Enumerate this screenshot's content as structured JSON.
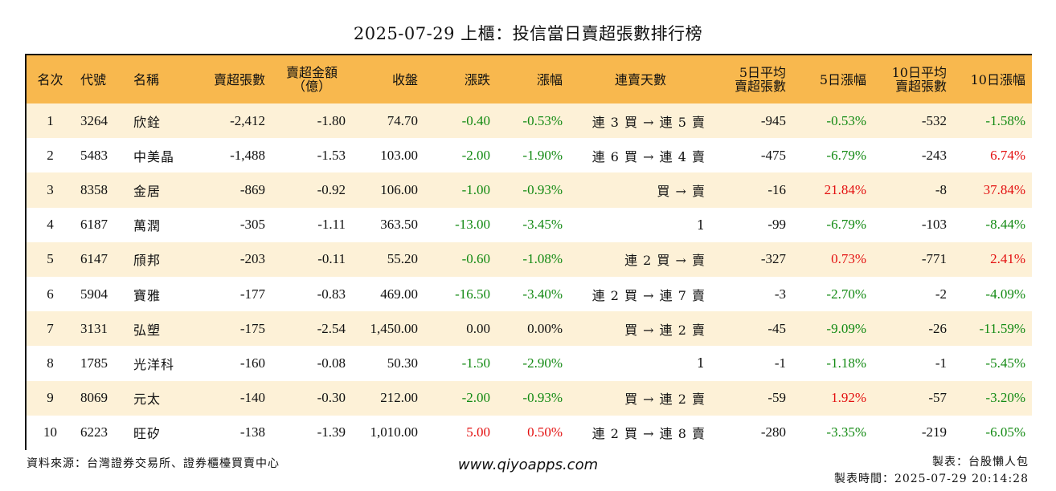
{
  "title": "2025-07-29 上櫃：投信當日賣超張數排行榜",
  "headers": {
    "rank": "名次",
    "code": "代號",
    "name": "名稱",
    "net_sell": "賣超張數",
    "amount_line1": "賣超金額",
    "amount_line2": "（億）",
    "close": "收盤",
    "change": "漲跌",
    "change_pct": "漲幅",
    "streak": "連賣天數",
    "avg5_line1": "5日平均",
    "avg5_line2": "賣超張數",
    "pct5": "5日漲幅",
    "avg10_line1": "10日平均",
    "avg10_line2": "賣超張數",
    "pct10": "10日漲幅"
  },
  "rows": [
    {
      "rank": "1",
      "code": "3264",
      "name": "欣銓",
      "net_sell": "-2,412",
      "amount": "-1.80",
      "close": "74.70",
      "change": "-0.40",
      "change_color": "green",
      "change_pct": "-0.53%",
      "change_pct_color": "green",
      "streak": "連 3 買 → 連 5 賣",
      "avg5": "-945",
      "pct5": "-0.53%",
      "pct5_color": "green",
      "avg10": "-532",
      "pct10": "-1.58%",
      "pct10_color": "green"
    },
    {
      "rank": "2",
      "code": "5483",
      "name": "中美晶",
      "net_sell": "-1,488",
      "amount": "-1.53",
      "close": "103.00",
      "change": "-2.00",
      "change_color": "green",
      "change_pct": "-1.90%",
      "change_pct_color": "green",
      "streak": "連 6 買 → 連 4 賣",
      "avg5": "-475",
      "pct5": "-6.79%",
      "pct5_color": "green",
      "avg10": "-243",
      "pct10": "6.74%",
      "pct10_color": "red"
    },
    {
      "rank": "3",
      "code": "8358",
      "name": "金居",
      "net_sell": "-869",
      "amount": "-0.92",
      "close": "106.00",
      "change": "-1.00",
      "change_color": "green",
      "change_pct": "-0.93%",
      "change_pct_color": "green",
      "streak": "買 → 賣",
      "avg5": "-16",
      "pct5": "21.84%",
      "pct5_color": "red",
      "avg10": "-8",
      "pct10": "37.84%",
      "pct10_color": "red"
    },
    {
      "rank": "4",
      "code": "6187",
      "name": "萬潤",
      "net_sell": "-305",
      "amount": "-1.11",
      "close": "363.50",
      "change": "-13.00",
      "change_color": "green",
      "change_pct": "-3.45%",
      "change_pct_color": "green",
      "streak": "1",
      "avg5": "-99",
      "pct5": "-6.79%",
      "pct5_color": "green",
      "avg10": "-103",
      "pct10": "-8.44%",
      "pct10_color": "green"
    },
    {
      "rank": "5",
      "code": "6147",
      "name": "頎邦",
      "net_sell": "-203",
      "amount": "-0.11",
      "close": "55.20",
      "change": "-0.60",
      "change_color": "green",
      "change_pct": "-1.08%",
      "change_pct_color": "green",
      "streak": "連 2 買 → 賣",
      "avg5": "-327",
      "pct5": "0.73%",
      "pct5_color": "red",
      "avg10": "-771",
      "pct10": "2.41%",
      "pct10_color": "red"
    },
    {
      "rank": "6",
      "code": "5904",
      "name": "寶雅",
      "net_sell": "-177",
      "amount": "-0.83",
      "close": "469.00",
      "change": "-16.50",
      "change_color": "green",
      "change_pct": "-3.40%",
      "change_pct_color": "green",
      "streak": "連 2 買 → 連 7 賣",
      "avg5": "-3",
      "pct5": "-2.70%",
      "pct5_color": "green",
      "avg10": "-2",
      "pct10": "-4.09%",
      "pct10_color": "green"
    },
    {
      "rank": "7",
      "code": "3131",
      "name": "弘塑",
      "net_sell": "-175",
      "amount": "-2.54",
      "close": "1,450.00",
      "change": "0.00",
      "change_color": "black",
      "change_pct": "0.00%",
      "change_pct_color": "black",
      "streak": "買 → 連 2 賣",
      "avg5": "-45",
      "pct5": "-9.09%",
      "pct5_color": "green",
      "avg10": "-26",
      "pct10": "-11.59%",
      "pct10_color": "green"
    },
    {
      "rank": "8",
      "code": "1785",
      "name": "光洋科",
      "net_sell": "-160",
      "amount": "-0.08",
      "close": "50.30",
      "change": "-1.50",
      "change_color": "green",
      "change_pct": "-2.90%",
      "change_pct_color": "green",
      "streak": "1",
      "avg5": "-1",
      "pct5": "-1.18%",
      "pct5_color": "green",
      "avg10": "-1",
      "pct10": "-5.45%",
      "pct10_color": "green"
    },
    {
      "rank": "9",
      "code": "8069",
      "name": "元太",
      "net_sell": "-140",
      "amount": "-0.30",
      "close": "212.00",
      "change": "-2.00",
      "change_color": "green",
      "change_pct": "-0.93%",
      "change_pct_color": "green",
      "streak": "買 → 連 2 賣",
      "avg5": "-59",
      "pct5": "1.92%",
      "pct5_color": "red",
      "avg10": "-57",
      "pct10": "-3.20%",
      "pct10_color": "green"
    },
    {
      "rank": "10",
      "code": "6223",
      "name": "旺矽",
      "net_sell": "-138",
      "amount": "-1.39",
      "close": "1,010.00",
      "change": "5.00",
      "change_color": "red",
      "change_pct": "0.50%",
      "change_pct_color": "red",
      "streak": "連 2 買 → 連 8 賣",
      "avg5": "-280",
      "pct5": "-3.35%",
      "pct5_color": "green",
      "avg10": "-219",
      "pct10": "-6.05%",
      "pct10_color": "green"
    }
  ],
  "colors": {
    "header_bg": "#f8b84e",
    "odd_row_bg": "#fdf1d7",
    "green": "#138a13",
    "red": "#e31010"
  },
  "footer": {
    "source": "資料來源：台灣證券交易所、證券櫃檯買賣中心",
    "website": "www.qiyoapps.com",
    "maker": "製表：台股懶人包",
    "made_time": "製表時間：2025-07-29 20:14:28"
  }
}
